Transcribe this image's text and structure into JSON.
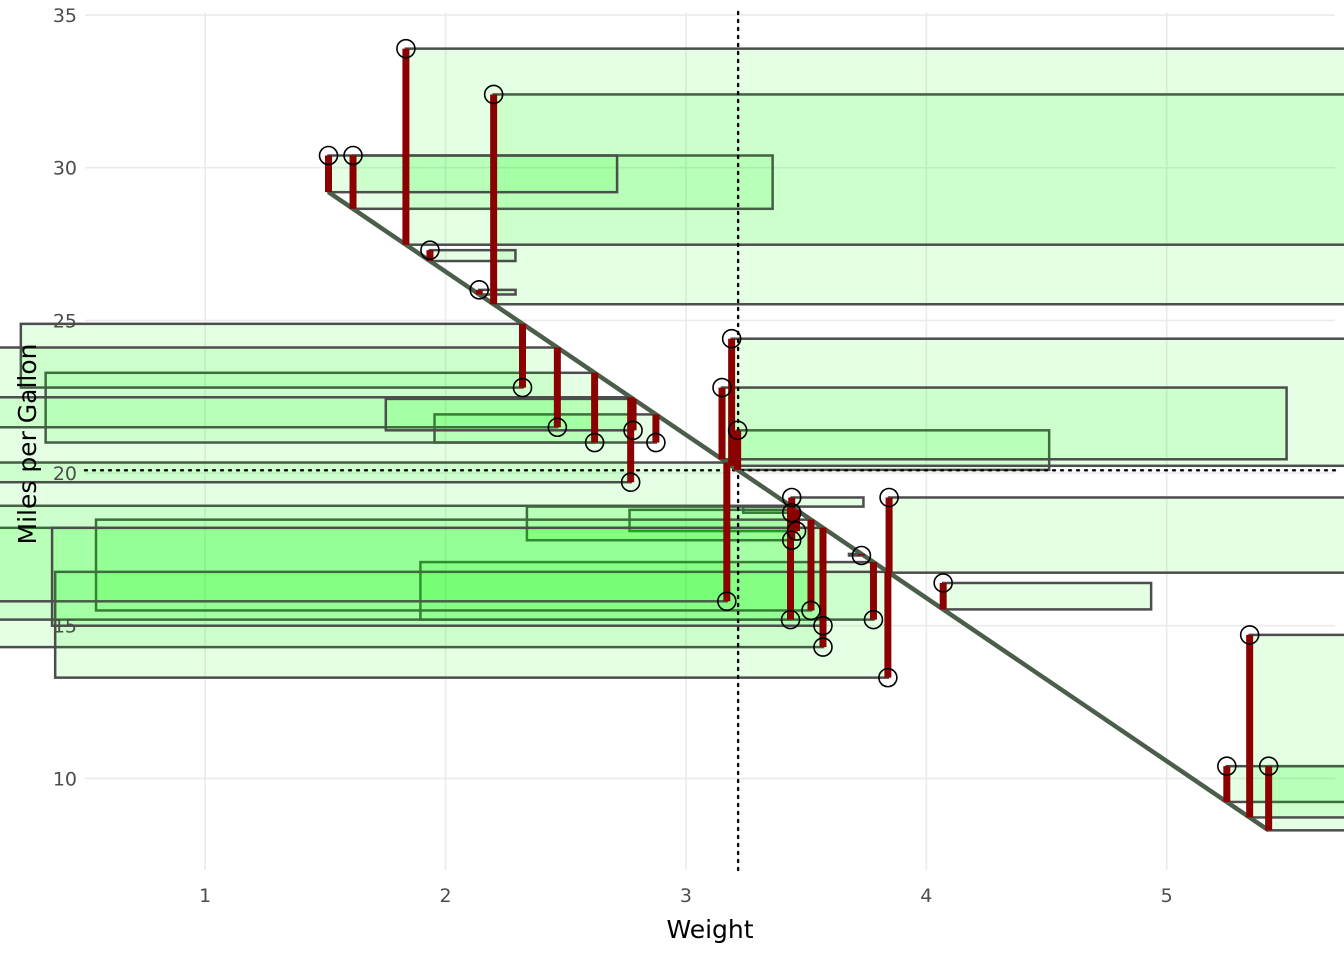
{
  "chart_data": {
    "type": "scatter",
    "title": "",
    "xlabel": "Weight",
    "ylabel": "Miles per Gallon",
    "xlim": [
      0.5,
      5.7
    ],
    "ylim": [
      7,
      35.1
    ],
    "x_ticks": [
      1,
      2,
      3,
      4,
      5
    ],
    "y_ticks": [
      10,
      15,
      20,
      25,
      30,
      35
    ],
    "x_tick_labels": [
      "1",
      "2",
      "3",
      "4",
      "5"
    ],
    "y_tick_labels": [
      "10",
      "15",
      "20",
      "25",
      "30",
      "35"
    ],
    "grid": true,
    "reference_lines": {
      "mean_x": 3.217,
      "mean_y": 20.09,
      "style": "dotted"
    },
    "regression": {
      "intercept": 37.285,
      "slope": -5.344
    },
    "points": {
      "x": [
        2.62,
        2.875,
        2.32,
        3.215,
        3.44,
        3.46,
        3.57,
        3.19,
        3.15,
        3.44,
        3.44,
        4.07,
        3.73,
        3.78,
        5.25,
        5.424,
        5.345,
        2.2,
        1.615,
        1.835,
        2.465,
        3.52,
        3.435,
        3.84,
        3.845,
        1.935,
        2.14,
        1.513,
        3.17,
        2.77,
        3.57,
        2.78
      ],
      "y": [
        21.0,
        21.0,
        22.8,
        21.4,
        18.7,
        18.1,
        14.3,
        24.4,
        22.8,
        19.2,
        17.8,
        16.4,
        17.3,
        15.2,
        10.4,
        10.4,
        14.7,
        32.4,
        30.4,
        33.9,
        21.5,
        15.5,
        15.2,
        13.3,
        19.2,
        27.3,
        26.0,
        30.4,
        15.8,
        19.7,
        15.0,
        21.4
      ]
    },
    "colors": {
      "residual": "#8b0000",
      "square_fill": "#00ff00",
      "square_fill_opacity": 0.1,
      "square_stroke": "#4d4d4d",
      "fit_line": "#4a5e4a",
      "point_stroke": "#000000",
      "reference": "#000000"
    }
  }
}
